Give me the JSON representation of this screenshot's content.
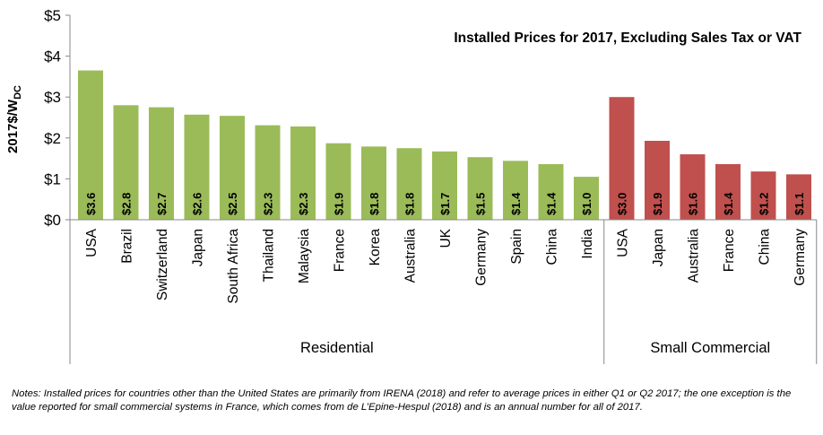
{
  "chart_data": {
    "type": "bar",
    "title": "Installed Prices for 2017, Excluding Sales Tax or VAT",
    "ylabel_main": "2017$/W",
    "ylabel_sub": "DC",
    "ylim": [
      0,
      5
    ],
    "y_ticks": [
      "$0",
      "$1",
      "$2",
      "$3",
      "$4",
      "$5"
    ],
    "grid": false,
    "groups": [
      {
        "name": "Residential",
        "color": "#9bbb59",
        "categories": [
          "USA",
          "Brazil",
          "Switzerland",
          "Japan",
          "South Africa",
          "Thailand",
          "Malaysia",
          "France",
          "Korea",
          "Australia",
          "UK",
          "Germany",
          "Spain",
          "China",
          "India"
        ],
        "values": [
          3.65,
          2.8,
          2.75,
          2.57,
          2.54,
          2.31,
          2.28,
          1.87,
          1.79,
          1.75,
          1.67,
          1.53,
          1.44,
          1.36,
          1.05
        ],
        "value_labels": [
          "$3.6",
          "$2.8",
          "$2.7",
          "$2.6",
          "$2.5",
          "$2.3",
          "$2.3",
          "$1.9",
          "$1.8",
          "$1.8",
          "$1.7",
          "$1.5",
          "$1.4",
          "$1.4",
          "$1.0"
        ]
      },
      {
        "name": "Small Commercial",
        "color": "#c0504d",
        "categories": [
          "USA",
          "Japan",
          "Australia",
          "France",
          "China",
          "Germany"
        ],
        "values": [
          3.0,
          1.93,
          1.6,
          1.36,
          1.18,
          1.11
        ],
        "value_labels": [
          "$3.0",
          "$1.9",
          "$1.6",
          "$1.4",
          "$1.2",
          "$1.1"
        ]
      }
    ]
  },
  "notes": "Notes: Installed prices for countries other than the United States are primarily from IRENA (2018) and refer to average prices in either Q1 or Q2 2017; the one exception is the value reported for small commercial systems in France, which comes from de L’Epine-Hespul (2018) and is an annual number for all of 2017."
}
